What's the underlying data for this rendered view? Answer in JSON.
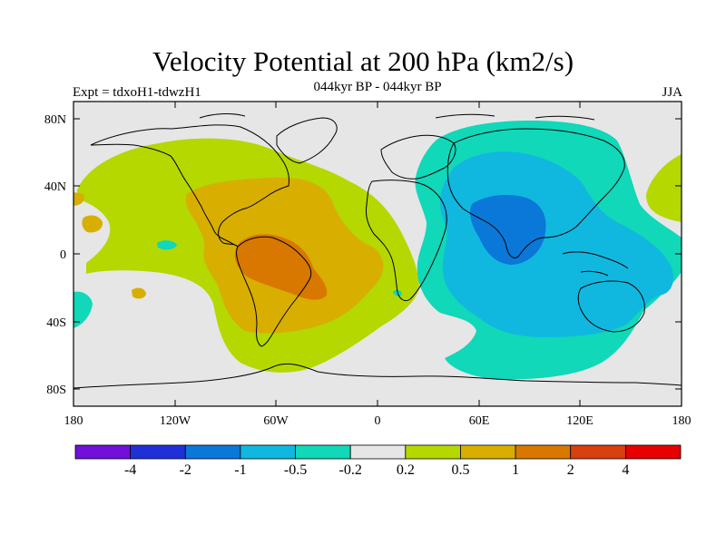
{
  "title": "Velocity Potential at 200 hPa (km2/s)",
  "subtitle": "044kyr BP - 044kyr BP",
  "left_label": "Expt = tdxoH1-tdwzH1",
  "right_label": "JJA",
  "lat_ticks": [
    "80N",
    "40N",
    "0",
    "40S",
    "80S"
  ],
  "lon_ticks": [
    "180",
    "120W",
    "60W",
    "0",
    "60E",
    "120E",
    "180"
  ],
  "colorbar": {
    "labels": [
      "-4",
      "-2",
      "-1",
      "-0.5",
      "-0.2",
      "0.2",
      "0.5",
      "1",
      "2",
      "4"
    ],
    "colors": [
      "#7010d8",
      "#2030d8",
      "#0a78d8",
      "#10b8e0",
      "#10d8b8",
      "#e6e6e6",
      "#b4d800",
      "#d8ae00",
      "#d87800",
      "#d84010",
      "#e80000"
    ]
  },
  "colors": {
    "background": "#e6e6e6",
    "neg_weak": "#10d8b8",
    "neg_mid": "#10b8e0",
    "neg_strong": "#0a78d8",
    "pos_weak": "#b4d800",
    "pos_mid": "#d8ae00",
    "pos_strong": "#d87800"
  }
}
